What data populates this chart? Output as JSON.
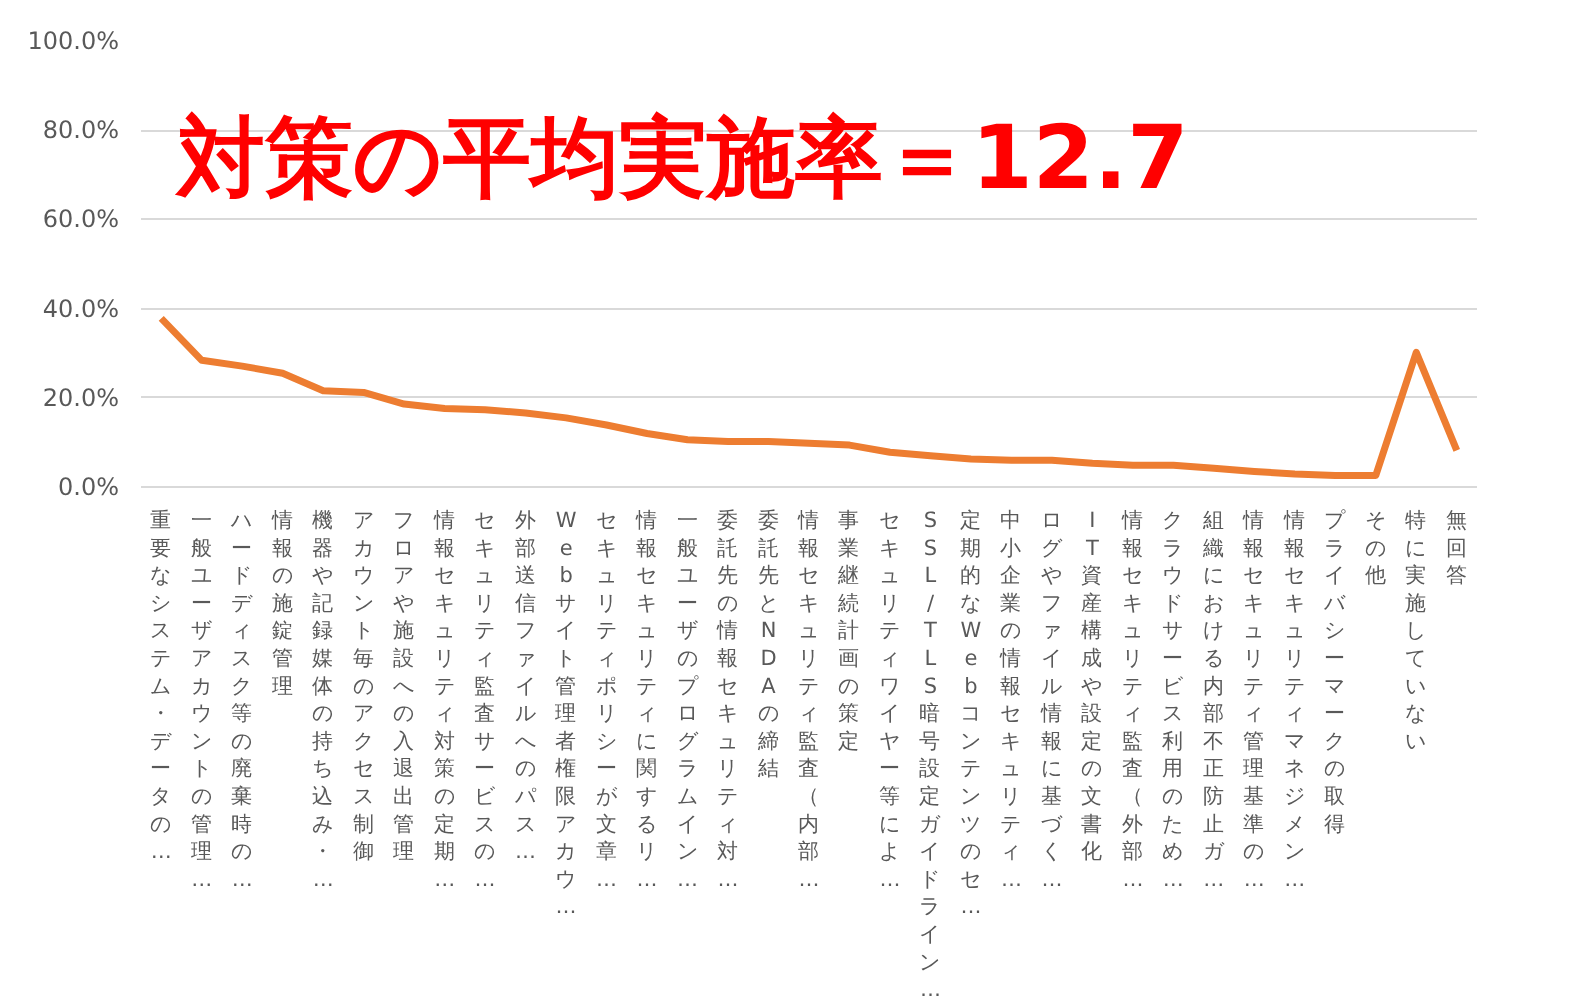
{
  "chart_data": {
    "type": "line",
    "categories": [
      "重要なシステム・データの…",
      "一般ユーザアカウントの管理…",
      "ハードディスク等の廃棄時の…",
      "情報の施錠管理",
      "機器や記録媒体の持ち込み・…",
      "アカウント毎のアクセス制御",
      "フロアや施設への入退出管理",
      "情報セキュリティ対策の定期…",
      "セキュリティ監査サービスの…",
      "外部送信ファイルへのパス…",
      "Webサイト管理者権限アカウ…",
      "セキュリティポリシーが文章…",
      "情報セキュリティに関するリ…",
      "一般ユーザのプログラムイン…",
      "委託先の情報セキュリティ対…",
      "委託先とNDAの締結",
      "情報セキュリティ監査（内部…",
      "事業継続計画の策定",
      "セキュリティワイヤー等によ…",
      "SSL/TLS暗号設定ガイドライン…",
      "定期的なWebコンテンツのセ…",
      "中小企業の情報セキュリティ…",
      "ログやファイル情報に基づく…",
      "IT資産構成や設定の文書化",
      "情報セキュリティ監査（外部…",
      "クラウドサービス利用のため…",
      "組織における内部不正防止ガ…",
      "情報セキュリティ管理基準の…",
      "情報セキュリティマネジメン…",
      "プライバシーマークの取得",
      "その他",
      "特に実施していない",
      "無回答"
    ],
    "series": [
      {
        "color": "#ed7d31",
        "values": [
          37.8,
          28.4,
          27.1,
          25.5,
          21.6,
          21.2,
          18.6,
          17.6,
          17.3,
          16.6,
          15.5,
          13.9,
          12.0,
          10.6,
          10.2,
          10.2,
          9.8,
          9.4,
          7.8,
          7.0,
          6.3,
          6.0,
          6.0,
          5.3,
          4.9,
          4.9,
          4.2,
          3.5,
          2.9,
          2.6,
          2.6,
          30.2,
          8.2
        ]
      }
    ],
    "ylim": [
      0,
      100
    ],
    "yticks": [
      {
        "value": 0,
        "label": "0.0%"
      },
      {
        "value": 20,
        "label": "20.0%"
      },
      {
        "value": 40,
        "label": "40.0%"
      },
      {
        "value": 60,
        "label": "60.0%"
      },
      {
        "value": 80,
        "label": "80.0%"
      },
      {
        "value": 100,
        "label": "100.0%"
      }
    ],
    "grid": "y",
    "marker": "none",
    "line_style": "solid",
    "annotations": [
      "対策の平均実施率＝12.7"
    ]
  }
}
